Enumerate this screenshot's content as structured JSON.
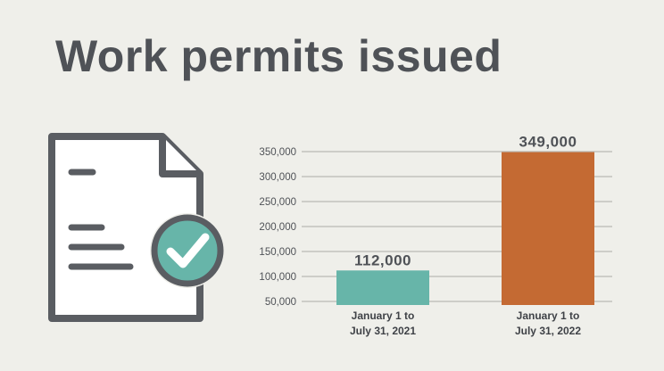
{
  "chart_data": {
    "type": "bar",
    "title": "Work permits issued",
    "categories": [
      [
        "January 1 to",
        "July 31, 2021"
      ],
      [
        "January 1 to",
        "July 31, 2022"
      ]
    ],
    "values": [
      112000,
      349000
    ],
    "value_labels": [
      "112,000",
      "349,000"
    ],
    "bar_colors": [
      "#67b5a9",
      "#c46a33"
    ],
    "yticks": [
      50000,
      100000,
      150000,
      200000,
      250000,
      300000,
      350000
    ],
    "ytick_labels": [
      "50,000",
      "100,000",
      "150,000",
      "200,000",
      "250,000",
      "300,000",
      "350,000"
    ],
    "ylim": [
      50000,
      350000
    ],
    "grid": true,
    "xlabel": "",
    "ylabel": ""
  },
  "icons": {
    "document": "document-icon",
    "check": "checkmark-badge-icon"
  },
  "colors": {
    "background": "#efefea",
    "text": "#4f5257",
    "icon_stroke": "#5a5d62",
    "check_fill": "#67b5a9"
  }
}
